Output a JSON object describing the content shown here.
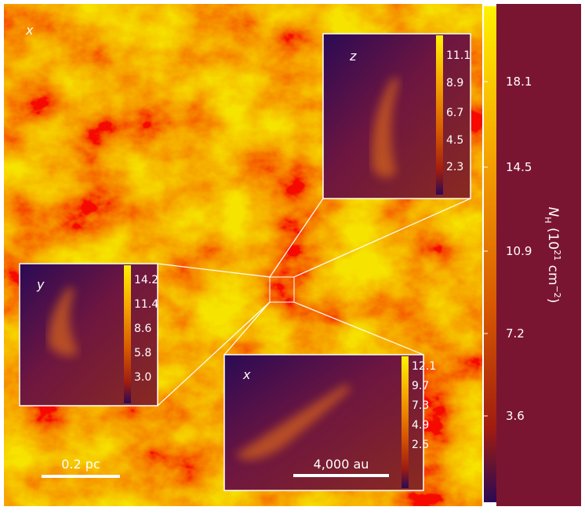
{
  "main": {
    "view_label": "x",
    "scale_bar": "0.2 pc"
  },
  "colorbar": {
    "symbol": "N",
    "subscript": "H",
    "prefix": " (10",
    "exponent": "21",
    "unit": " cm",
    "unit_exponent": "−2",
    "suffix": ")",
    "ticks": [
      "18.1",
      "14.5",
      "10.9",
      "7.2",
      "3.6"
    ]
  },
  "insets": [
    {
      "view_label": "z",
      "ticks": [
        "11.1",
        "8.9",
        "6.7",
        "4.5",
        "2.3"
      ]
    },
    {
      "view_label": "y",
      "ticks": [
        "14.2",
        "11.4",
        "8.6",
        "5.8",
        "3.0"
      ]
    },
    {
      "view_label": "x",
      "ticks": [
        "12.1",
        "9.7",
        "7.3",
        "4.9",
        "2.5"
      ],
      "scale_bar": "4,000 au"
    }
  ]
}
